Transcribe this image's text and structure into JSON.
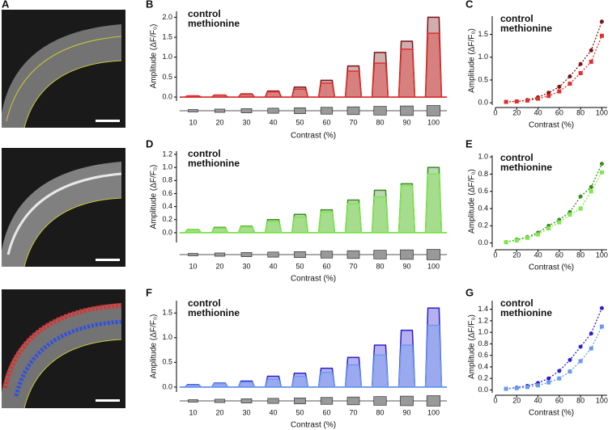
{
  "image_panel": {
    "panel": "A"
  },
  "chart_data": [
    {
      "type": "pulse",
      "panel": "B",
      "ylabel": "Amplitude (ΔF/F₀)",
      "xlabel": "Contrast (%)",
      "categories": [
        "10",
        "20",
        "30",
        "40",
        "50",
        "60",
        "70",
        "80",
        "90",
        "100"
      ],
      "ylim": [
        -0.1,
        2.15
      ],
      "yticks": [
        {
          "value": 0,
          "label": "0.0"
        },
        0.5,
        {
          "value": 1,
          "label": "1.0"
        },
        1.5,
        {
          "value": 2,
          "label": "2.0"
        }
      ],
      "series": [
        {
          "name": "control",
          "color": "#7a1414",
          "values": [
            0.03,
            0.05,
            0.08,
            0.15,
            0.25,
            0.42,
            0.78,
            1.12,
            1.4,
            2.0
          ]
        },
        {
          "name": "methionine",
          "color": "#e0302c",
          "values": [
            0.03,
            0.05,
            0.07,
            0.13,
            0.2,
            0.35,
            0.65,
            0.85,
            1.2,
            1.6
          ]
        }
      ]
    },
    {
      "type": "scatter",
      "panel": "C",
      "ylabel": "Amplitude (ΔF/F₀)",
      "xlabel": "Contrast (%)",
      "x": [
        10,
        20,
        30,
        40,
        50,
        60,
        70,
        80,
        90,
        100
      ],
      "xlim": [
        0,
        105
      ],
      "xticks": [
        0,
        20,
        40,
        60,
        80,
        100
      ],
      "ylim": [
        -0.05,
        1.9
      ],
      "yticks": [
        {
          "value": 0,
          "label": "0.0"
        },
        0.5,
        {
          "value": 1,
          "label": "1.0"
        },
        1.5
      ],
      "series": [
        {
          "name": "control",
          "color": "#7a1414",
          "values": [
            0.02,
            0.03,
            0.06,
            0.12,
            0.22,
            0.35,
            0.58,
            0.85,
            1.15,
            1.78
          ]
        },
        {
          "name": "methionine",
          "color": "#e0302c",
          "values": [
            0.02,
            0.03,
            0.05,
            0.09,
            0.15,
            0.25,
            0.42,
            0.65,
            0.9,
            1.47
          ]
        }
      ]
    },
    {
      "type": "pulse",
      "panel": "D",
      "ylabel": "Amplitude (ΔF/F₀)",
      "xlabel": "Contrast (%)",
      "categories": [
        "10",
        "20",
        "30",
        "40",
        "50",
        "60",
        "70",
        "80",
        "90",
        "100"
      ],
      "ylim": [
        -0.15,
        1.25
      ],
      "yticks": [
        {
          "value": 0,
          "label": "0.0"
        },
        0.2,
        0.4,
        0.6,
        0.8,
        {
          "value": 1,
          "label": "1.0"
        },
        1.2
      ],
      "series": [
        {
          "name": "control",
          "color": "#3a8a22",
          "values": [
            0.05,
            0.08,
            0.1,
            0.2,
            0.28,
            0.35,
            0.5,
            0.65,
            0.75,
            1.0
          ]
        },
        {
          "name": "methionine",
          "color": "#7ee84a",
          "values": [
            0.05,
            0.07,
            0.09,
            0.17,
            0.24,
            0.32,
            0.45,
            0.55,
            0.72,
            0.9
          ]
        }
      ]
    },
    {
      "type": "scatter",
      "panel": "E",
      "ylabel": "Amplitude (ΔF/F₀)",
      "xlabel": "Contrast (%)",
      "x": [
        10,
        20,
        30,
        40,
        50,
        60,
        70,
        80,
        90,
        100
      ],
      "xlim": [
        0,
        105
      ],
      "xticks": [
        0,
        20,
        40,
        60,
        80,
        100
      ],
      "ylim": [
        -0.05,
        1.02
      ],
      "yticks": [
        {
          "value": 0,
          "label": "0.0"
        },
        0.2,
        0.4,
        0.6,
        0.8,
        {
          "value": 1,
          "label": "1.0"
        }
      ],
      "series": [
        {
          "name": "control",
          "color": "#3a8a22",
          "values": [
            0.01,
            0.04,
            0.07,
            0.12,
            0.2,
            0.27,
            0.36,
            0.54,
            0.65,
            0.92
          ]
        },
        {
          "name": "methionine",
          "color": "#7ee84a",
          "values": [
            0.01,
            0.03,
            0.06,
            0.1,
            0.17,
            0.24,
            0.33,
            0.4,
            0.6,
            0.82
          ]
        }
      ]
    },
    {
      "type": "pulse",
      "panel": "F",
      "ylabel": "Amplitude (ΔF/F₀)",
      "xlabel": "Contrast (%)",
      "categories": [
        "10",
        "20",
        "30",
        "40",
        "50",
        "60",
        "70",
        "80",
        "90",
        "100"
      ],
      "ylim": [
        -0.1,
        1.75
      ],
      "yticks": [
        {
          "value": 0,
          "label": "0.0"
        },
        0.5,
        {
          "value": 1,
          "label": "1.0"
        },
        1.5
      ],
      "series": [
        {
          "name": "control",
          "color": "#2a1fd0",
          "values": [
            0.05,
            0.08,
            0.12,
            0.22,
            0.28,
            0.38,
            0.6,
            0.85,
            1.15,
            1.6
          ]
        },
        {
          "name": "methionine",
          "color": "#6a9af0",
          "values": [
            0.04,
            0.07,
            0.1,
            0.16,
            0.22,
            0.3,
            0.45,
            0.65,
            0.85,
            1.25
          ]
        }
      ]
    },
    {
      "type": "scatter",
      "panel": "G",
      "ylabel": "Amplitude (ΔF/F₀)",
      "xlabel": "Contrast (%)",
      "x": [
        10,
        20,
        30,
        40,
        50,
        60,
        70,
        80,
        90,
        100
      ],
      "xlim": [
        0,
        105
      ],
      "xticks": [
        0,
        20,
        40,
        60,
        80,
        100
      ],
      "ylim": [
        -0.05,
        1.55
      ],
      "yticks": [
        {
          "value": 0,
          "label": "0.0"
        },
        0.2,
        0.4,
        0.6,
        0.8,
        {
          "value": 1,
          "label": "1.0"
        },
        1.2,
        1.4
      ],
      "series": [
        {
          "name": "control",
          "color": "#2a1fd0",
          "values": [
            0.02,
            0.04,
            0.07,
            0.12,
            0.2,
            0.33,
            0.52,
            0.75,
            0.98,
            1.42
          ]
        },
        {
          "name": "methionine",
          "color": "#6a9af0",
          "values": [
            0.02,
            0.03,
            0.05,
            0.08,
            0.13,
            0.2,
            0.32,
            0.5,
            0.72,
            1.1
          ]
        }
      ]
    }
  ]
}
